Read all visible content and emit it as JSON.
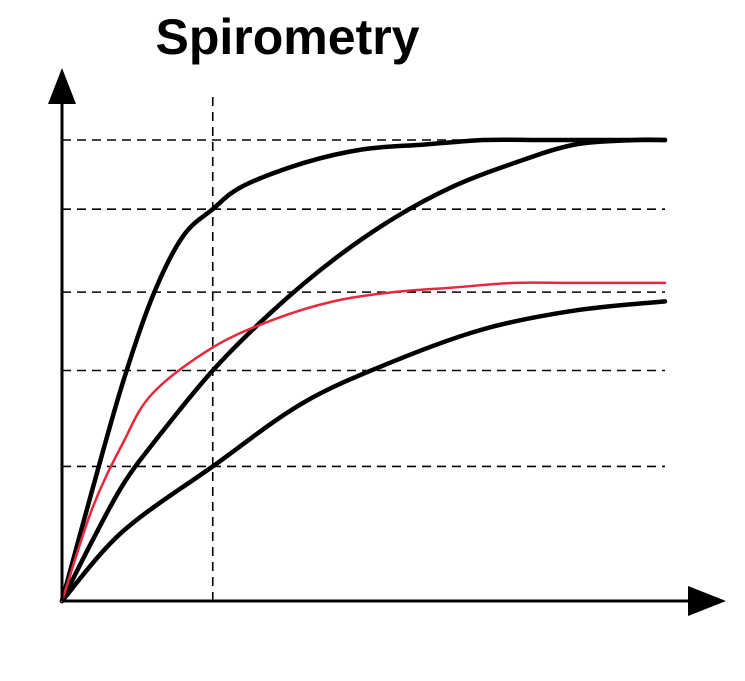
{
  "chart_data": {
    "type": "line",
    "title": "Spirometry",
    "xlabel": "",
    "ylabel": "",
    "xlim": [
      0,
      1
    ],
    "ylim": [
      0,
      1
    ],
    "grid": false,
    "reference_lines": {
      "vertical_x": [
        0.25
      ],
      "horizontal_y": [
        0.292,
        0.5,
        0.67,
        0.85,
        1.0
      ]
    },
    "series": [
      {
        "color": "#000000",
        "x": [
          0,
          0.05,
          0.1,
          0.15,
          0.2,
          0.25,
          0.3,
          0.4,
          0.5,
          0.6,
          0.7,
          0.8,
          0.9,
          1.0
        ],
        "y": [
          0,
          0.24,
          0.47,
          0.66,
          0.79,
          0.85,
          0.9,
          0.95,
          0.98,
          0.99,
          1.0,
          1.0,
          1.0,
          1.0
        ]
      },
      {
        "color": "#000000",
        "x": [
          0,
          0.05,
          0.1,
          0.15,
          0.25,
          0.35,
          0.45,
          0.55,
          0.65,
          0.75,
          0.85,
          0.95,
          1.0
        ],
        "y": [
          0,
          0.13,
          0.25,
          0.34,
          0.5,
          0.63,
          0.74,
          0.83,
          0.9,
          0.95,
          0.99,
          1.0,
          1.0
        ]
      },
      {
        "color": "#000000",
        "x": [
          0,
          0.1,
          0.25,
          0.4,
          0.55,
          0.7,
          0.85,
          1.0
        ],
        "y": [
          0,
          0.15,
          0.292,
          0.43,
          0.52,
          0.59,
          0.63,
          0.65
        ]
      },
      {
        "color": "#e8283c",
        "x": [
          0,
          0.05,
          0.1,
          0.15,
          0.25,
          0.35,
          0.45,
          0.55,
          0.65,
          0.75,
          0.85,
          1.0
        ],
        "y": [
          0,
          0.2,
          0.34,
          0.45,
          0.55,
          0.61,
          0.65,
          0.67,
          0.68,
          0.69,
          0.69,
          0.69
        ]
      }
    ]
  }
}
